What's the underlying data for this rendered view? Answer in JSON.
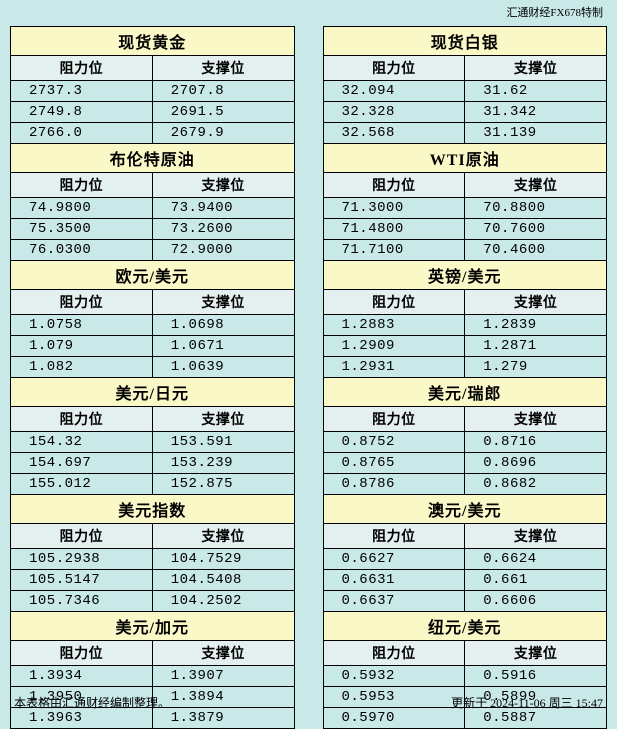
{
  "watermark": "汇通财经FX678特制",
  "col_headers": {
    "resistance": "阻力位",
    "support": "支撑位"
  },
  "left": [
    {
      "title": "现货黄金",
      "rows": [
        [
          "2737.3",
          "2707.8"
        ],
        [
          "2749.8",
          "2691.5"
        ],
        [
          "2766.0",
          "2679.9"
        ]
      ]
    },
    {
      "title": "布伦特原油",
      "rows": [
        [
          "74.9800",
          "73.9400"
        ],
        [
          "75.3500",
          "73.2600"
        ],
        [
          "76.0300",
          "72.9000"
        ]
      ]
    },
    {
      "title": "欧元/美元",
      "rows": [
        [
          "1.0758",
          "1.0698"
        ],
        [
          "1.079",
          "1.0671"
        ],
        [
          "1.082",
          "1.0639"
        ]
      ]
    },
    {
      "title": "美元/日元",
      "rows": [
        [
          "154.32",
          "153.591"
        ],
        [
          "154.697",
          "153.239"
        ],
        [
          "155.012",
          "152.875"
        ]
      ]
    },
    {
      "title": "美元指数",
      "rows": [
        [
          "105.2938",
          "104.7529"
        ],
        [
          "105.5147",
          "104.5408"
        ],
        [
          "105.7346",
          "104.2502"
        ]
      ]
    },
    {
      "title": "美元/加元",
      "rows": [
        [
          "1.3934",
          "1.3907"
        ],
        [
          "1.3950",
          "1.3894"
        ],
        [
          "1.3963",
          "1.3879"
        ]
      ]
    }
  ],
  "right": [
    {
      "title": "现货白银",
      "rows": [
        [
          "32.094",
          "31.62"
        ],
        [
          "32.328",
          "31.342"
        ],
        [
          "32.568",
          "31.139"
        ]
      ]
    },
    {
      "title": "WTI原油",
      "rows": [
        [
          "71.3000",
          "70.8800"
        ],
        [
          "71.4800",
          "70.7600"
        ],
        [
          "71.7100",
          "70.4600"
        ]
      ]
    },
    {
      "title": "英镑/美元",
      "rows": [
        [
          "1.2883",
          "1.2839"
        ],
        [
          "1.2909",
          "1.2871"
        ],
        [
          "1.2931",
          "1.279"
        ]
      ]
    },
    {
      "title": "美元/瑞郎",
      "rows": [
        [
          "0.8752",
          "0.8716"
        ],
        [
          "0.8765",
          "0.8696"
        ],
        [
          "0.8786",
          "0.8682"
        ]
      ]
    },
    {
      "title": "澳元/美元",
      "rows": [
        [
          "0.6627",
          "0.6624"
        ],
        [
          "0.6631",
          "0.661"
        ],
        [
          "0.6637",
          "0.6606"
        ]
      ]
    },
    {
      "title": "纽元/美元",
      "rows": [
        [
          "0.5932",
          "0.5916"
        ],
        [
          "0.5953",
          "0.5899"
        ],
        [
          "0.5970",
          "0.5887"
        ]
      ]
    }
  ],
  "footer": {
    "source": "本表格由汇通财经编制整理。",
    "updated": "更新于 2024-11-06 周三 15:47"
  },
  "colors": {
    "page_bg": "#c9e8e8",
    "title_bg": "#fbf8c8",
    "header_bg": "#e4f0ef",
    "border": "#000000"
  }
}
